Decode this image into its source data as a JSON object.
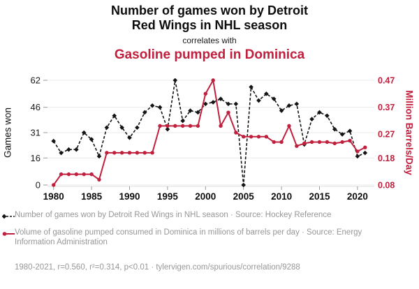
{
  "header": {
    "title_lines": [
      "Number of games won by Detroit",
      "Red Wings in NHL season"
    ],
    "connector": "correlates with",
    "subtitle": "Gasoline pumped in Dominica"
  },
  "colors": {
    "accent_red": "#c0203e",
    "series_black": "#141414",
    "legend_gray": "#979797",
    "gridline": "#ebebeb",
    "tick": "#999999"
  },
  "chart_data": {
    "type": "line",
    "title": "Number of games won by Detroit Red Wings in NHL season correlates with Gasoline pumped in Dominica",
    "x": [
      1980,
      1981,
      1982,
      1983,
      1984,
      1985,
      1986,
      1987,
      1988,
      1989,
      1990,
      1991,
      1992,
      1993,
      1994,
      1995,
      1996,
      1997,
      1998,
      1999,
      2000,
      2001,
      2002,
      2003,
      2004,
      2005,
      2006,
      2007,
      2008,
      2009,
      2010,
      2011,
      2012,
      2013,
      2014,
      2015,
      2016,
      2017,
      2018,
      2019,
      2020,
      2021
    ],
    "series": [
      {
        "name": "Number of games won by Detroit Red Wings in NHL season",
        "axis": "left",
        "color": "#141414",
        "style": "dashed",
        "marker": "diamond",
        "values": [
          26,
          19,
          21,
          21,
          31,
          27,
          17,
          34,
          41,
          34,
          28,
          34,
          43,
          47,
          46,
          33,
          62,
          38,
          44,
          43,
          48,
          49,
          51,
          48,
          48,
          0,
          58,
          50,
          54,
          51,
          44,
          47,
          48,
          24,
          39,
          43,
          41,
          33,
          30,
          32,
          17,
          19
        ]
      },
      {
        "name": "Volume of gasoline pumped consumed in Dominica in millions of barrels per day",
        "axis": "right",
        "color": "#c0203e",
        "style": "solid",
        "marker": "circle",
        "values": [
          0.08,
          0.12,
          0.12,
          0.12,
          0.12,
          0.12,
          0.1,
          0.2,
          0.2,
          0.2,
          0.2,
          0.2,
          0.2,
          0.2,
          0.3,
          0.3,
          0.3,
          0.3,
          0.3,
          0.3,
          0.42,
          0.47,
          0.3,
          0.35,
          0.275,
          0.26,
          0.26,
          0.26,
          0.26,
          0.24,
          0.24,
          0.3,
          0.225,
          0.235,
          0.24,
          0.24,
          0.24,
          0.235,
          0.24,
          0.245,
          0.205,
          0.22
        ]
      }
    ],
    "left_axis": {
      "label": "Games won",
      "ticks": [
        0,
        16,
        31,
        46,
        62
      ],
      "range": [
        0,
        62
      ]
    },
    "right_axis": {
      "label": "Million Barrels/Day",
      "ticks": [
        "0.08",
        "0.18",
        "0.27",
        "0.37",
        "0.47"
      ],
      "range": [
        0.08,
        0.47
      ]
    },
    "x_axis": {
      "ticks": [
        1980,
        1985,
        1990,
        1995,
        2000,
        2005,
        2010,
        2015,
        2020
      ],
      "range": [
        1980,
        2021
      ]
    },
    "grid": "horizontal",
    "legend_position": "bottom"
  },
  "legend": {
    "entries": [
      {
        "label": "Number of games won by Detroit Red Wings in NHL season · Source: Hockey Reference",
        "marker": "black-dashed-diamond"
      },
      {
        "label": "Volume of gasoline pumped consumed in Dominica in millions of barrels per day · Source: Energy Information Administration",
        "marker": "red-solid-circle"
      }
    ],
    "stats": "1980-2021, r=0.560, r²=0.314, p<0.01 · tylervigen.com/spurious/correlation/9288"
  }
}
